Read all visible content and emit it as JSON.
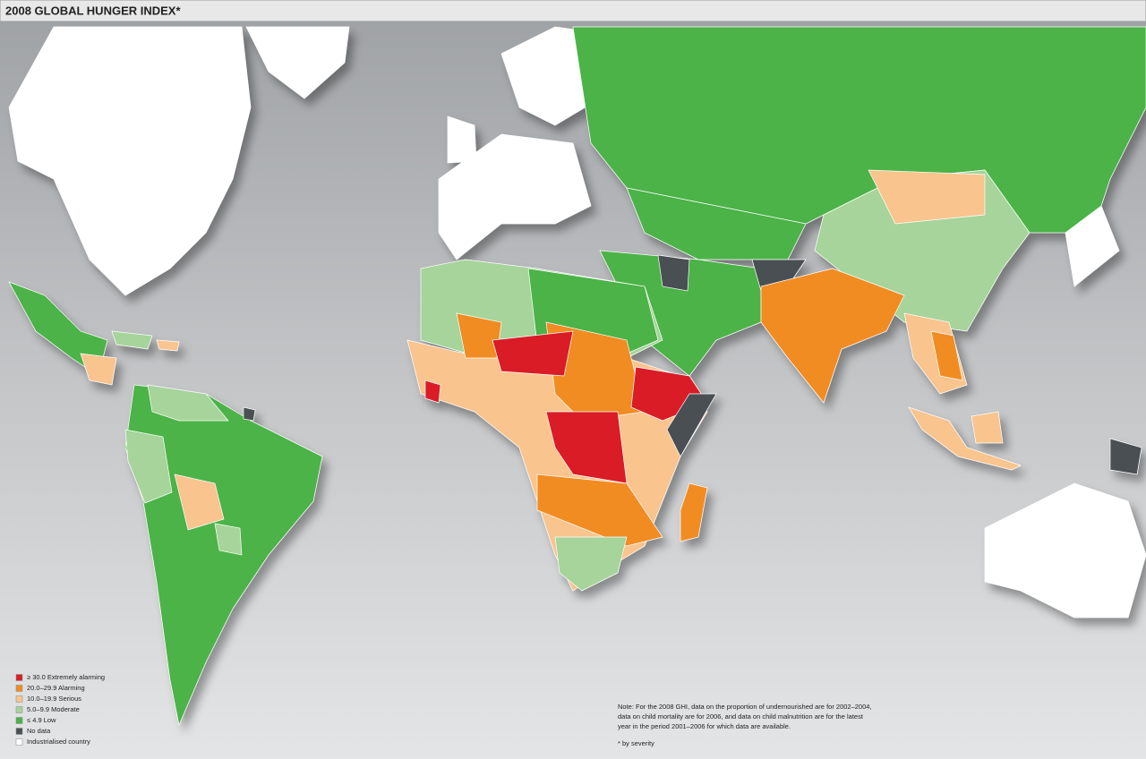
{
  "header": {
    "title": "2008 GLOBAL HUNGER INDEX*"
  },
  "legend": [
    {
      "label": "≥ 30.0 Extremely alarming",
      "color": "#d91f26"
    },
    {
      "label": "20.0–29.9 Alarming",
      "color": "#f18c22"
    },
    {
      "label": "10.0–19.9 Serious",
      "color": "#f9c48d"
    },
    {
      "label": "5.0–9.9 Moderate",
      "color": "#a6d49a"
    },
    {
      "label": "≤ 4.9 Low",
      "color": "#4bb347"
    },
    {
      "label": "No data",
      "color": "#4a4f52"
    },
    {
      "label": "Industrialised country",
      "color": "#ffffff"
    }
  ],
  "note": {
    "lines": [
      "Note: For the 2008 GHI, data on the proportion of undernourished are for 2002–2004,",
      "data on child mortality are for 2006, and data on child malnutrition are for the latest",
      "year in the period 2001–2006 for which data are available."
    ],
    "footnote": "* by severity"
  }
}
